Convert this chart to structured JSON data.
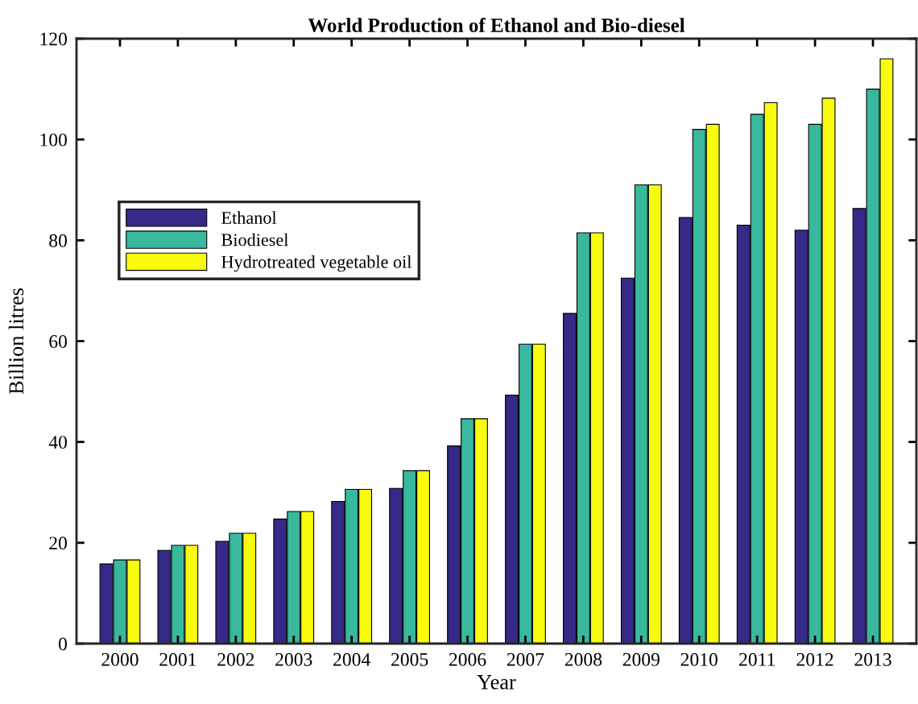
{
  "chart_data": {
    "type": "bar",
    "title": "World Production of Ethanol and Bio-diesel",
    "xlabel": "Year",
    "ylabel": "Billion litres",
    "categories": [
      "2000",
      "2001",
      "2002",
      "2003",
      "2004",
      "2005",
      "2006",
      "2007",
      "2008",
      "2009",
      "2010",
      "2011",
      "2012",
      "2013"
    ],
    "series": [
      {
        "name": "Ethanol",
        "color": "#352a87",
        "values": [
          15.8,
          18.5,
          20.3,
          24.7,
          28.2,
          30.8,
          39.2,
          49.3,
          65.5,
          72.5,
          84.5,
          83,
          82,
          86.3
        ]
      },
      {
        "name": "Biodiesel",
        "color": "#38b89d",
        "values": [
          16.6,
          19.5,
          21.9,
          26.2,
          30.6,
          34.3,
          44.6,
          59.4,
          81.5,
          91,
          102,
          105,
          103,
          110
        ]
      },
      {
        "name": "Hydrotreated vegetable oil",
        "color": "#f9fb0e",
        "values": [
          16.6,
          19.5,
          21.9,
          26.2,
          30.6,
          34.3,
          44.6,
          59.4,
          81.5,
          91,
          103,
          107.3,
          108.2,
          116
        ]
      }
    ],
    "ylim": [
      0,
      120
    ],
    "yticks": [
      0,
      20,
      40,
      60,
      80,
      100,
      120
    ],
    "grid": false,
    "legend": "upper left"
  }
}
